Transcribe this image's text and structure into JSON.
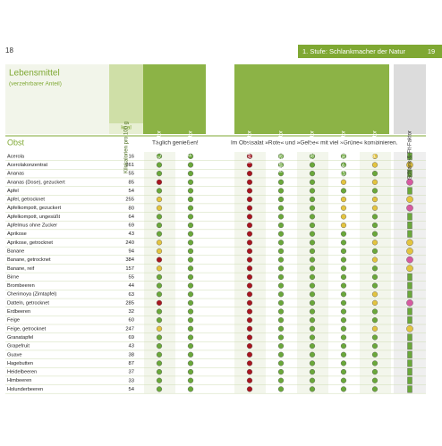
{
  "page_left": {
    "number": "18"
  },
  "page_right": {
    "section": "1. Stufe: Schlankmacher der Natur",
    "number": "19"
  },
  "header": {
    "title": "Lebensmittel",
    "subtitle": "(verzehrbarer Anteil)",
    "kcal_column": "Kilokalorien pro 100 g",
    "kcal_unit": "kcal",
    "columns": [
      "GLYX-Faktor",
      "Fett-Faktor",
      "Eiweiß-Faktor",
      "Harnsäure-Faktor",
      "Faser-Faktor",
      "Gute-Laune-Faktor",
      "Plus-Faktor",
      "Schlank-&-Fit-Faktor"
    ]
  },
  "section": {
    "title": "Obst",
    "note_left": "Täglich genießen!",
    "note_right": "Im Obstsalat »Rote« und »Gelbe« mit viel »Grüne« kombinieren."
  },
  "dot_colors": {
    "g": "#6aa83a",
    "y": "#e3c440",
    "r": "#a8151f",
    "p": "#d65aa0"
  },
  "rows": [
    {
      "name": "Acerola",
      "kcal": "16",
      "dots": "ggrgggyg"
    },
    {
      "name": "Acerolakonzentrat",
      "kcal": "261",
      "dots": "ggrgggyy"
    },
    {
      "name": "Ananas",
      "kcal": "55",
      "dots": "ggrggggg"
    },
    {
      "name": "Ananas (Dose), gezuckert",
      "kcal": "85",
      "dots": "rgrggyyp"
    },
    {
      "name": "Apfel",
      "kcal": "54",
      "dots": "ggrggggg"
    },
    {
      "name": "Apfel, getrocknet",
      "kcal": "255",
      "dots": "ygrggyyy"
    },
    {
      "name": "Apfelkompott, gezuckert",
      "kcal": "80",
      "dots": "ygrggyyp"
    },
    {
      "name": "Apfelkompott, ungesüßt",
      "kcal": "64",
      "dots": "ggrggygg"
    },
    {
      "name": "Apfelmus ohne Zucker",
      "kcal": "69",
      "dots": "ggrggygg"
    },
    {
      "name": "Aprikose",
      "kcal": "43",
      "dots": "ggrggggg"
    },
    {
      "name": "Aprikose, getrocknet",
      "kcal": "240",
      "dots": "ygrgggyy"
    },
    {
      "name": "Banane",
      "kcal": "94",
      "dots": "ygrggggy"
    },
    {
      "name": "Banane, getrocknet",
      "kcal": "384",
      "dots": "rgrgggyp"
    },
    {
      "name": "Banane, reif",
      "kcal": "157",
      "dots": "ygrggggy"
    },
    {
      "name": "Birne",
      "kcal": "55",
      "dots": "ggrggggg"
    },
    {
      "name": "Brombeeren",
      "kcal": "44",
      "dots": "ggrggggg"
    },
    {
      "name": "Cherimoya (Zimtapfel)",
      "kcal": "63",
      "dots": "ggrgggyg"
    },
    {
      "name": "Datteln, getrocknet",
      "kcal": "285",
      "dots": "rgrgggyp"
    },
    {
      "name": "Erdbeeren",
      "kcal": "32",
      "dots": "ggrggggg"
    },
    {
      "name": "Feige",
      "kcal": "60",
      "dots": "ggrggggg"
    },
    {
      "name": "Feige, getrocknet",
      "kcal": "247",
      "dots": "ygrgggyy"
    },
    {
      "name": "Granatapfel",
      "kcal": "69",
      "dots": "ggrggggg"
    },
    {
      "name": "Grapefruit",
      "kcal": "43",
      "dots": "ggrggggg"
    },
    {
      "name": "Guave",
      "kcal": "38",
      "dots": "ggrggggg"
    },
    {
      "name": "Hagebutten",
      "kcal": "87",
      "dots": "ggrggggg"
    },
    {
      "name": "Heidelbeeren",
      "kcal": "37",
      "dots": "ggrggggg"
    },
    {
      "name": "Himbeeren",
      "kcal": "33",
      "dots": "ggrggggg"
    },
    {
      "name": "Holunderbeeren",
      "kcal": "54",
      "dots": "ggrggggg"
    }
  ]
}
